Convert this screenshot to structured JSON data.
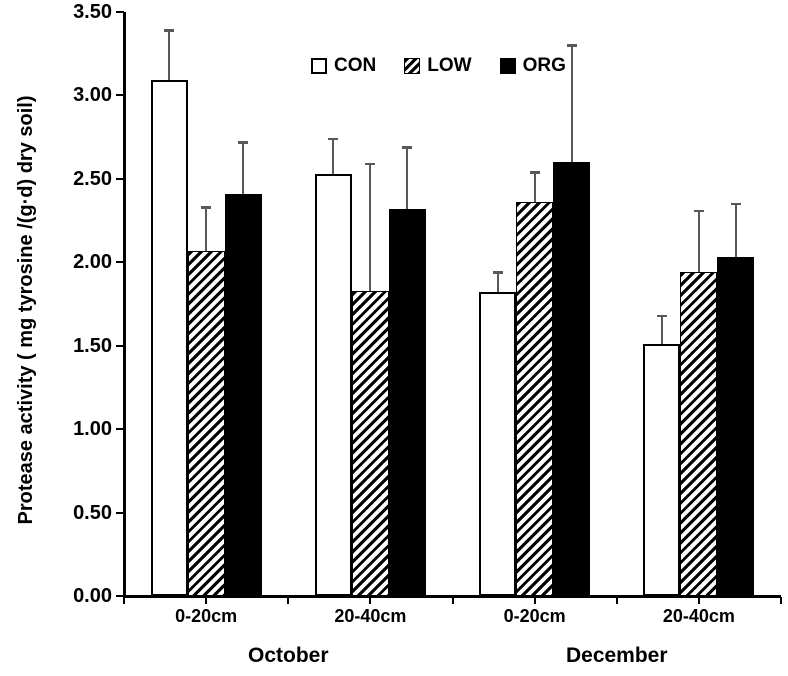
{
  "chart_data": {
    "type": "bar",
    "title": "",
    "xlabel": "",
    "ylabel": "Protease activity ( mg tyrosine /(g·d) dry soil)",
    "ylim": [
      0.0,
      3.5
    ],
    "ytick_step": 0.5,
    "ytick_labels": [
      "0.00",
      "0.50",
      "1.00",
      "1.50",
      "2.00",
      "2.50",
      "3.00",
      "3.50"
    ],
    "grid": false,
    "legend_position": "top-center",
    "categories": [
      "0-20cm",
      "20-40cm",
      "0-20cm",
      "20-40cm"
    ],
    "category_groups": [
      {
        "label": "October",
        "spans": [
          0,
          1
        ]
      },
      {
        "label": "December",
        "spans": [
          2,
          3
        ]
      }
    ],
    "series": [
      {
        "name": "CON",
        "fill": "con",
        "values": [
          3.09,
          2.53,
          1.82,
          1.51
        ],
        "errors_up": [
          0.3,
          0.21,
          0.12,
          0.17
        ]
      },
      {
        "name": "LOW",
        "fill": "low",
        "values": [
          2.07,
          1.83,
          2.36,
          1.94
        ],
        "errors_up": [
          0.26,
          0.76,
          0.18,
          0.37
        ]
      },
      {
        "name": "ORG",
        "fill": "org",
        "values": [
          2.41,
          2.32,
          2.6,
          2.03
        ],
        "errors_up": [
          0.31,
          0.37,
          0.7,
          0.32
        ]
      }
    ],
    "colors": {
      "bar_fill_black": "#000000",
      "bar_outline": "#000000",
      "hatch_stripe": "#000000",
      "error_bar": "#595959",
      "text": "#000000",
      "background": "#ffffff"
    }
  }
}
